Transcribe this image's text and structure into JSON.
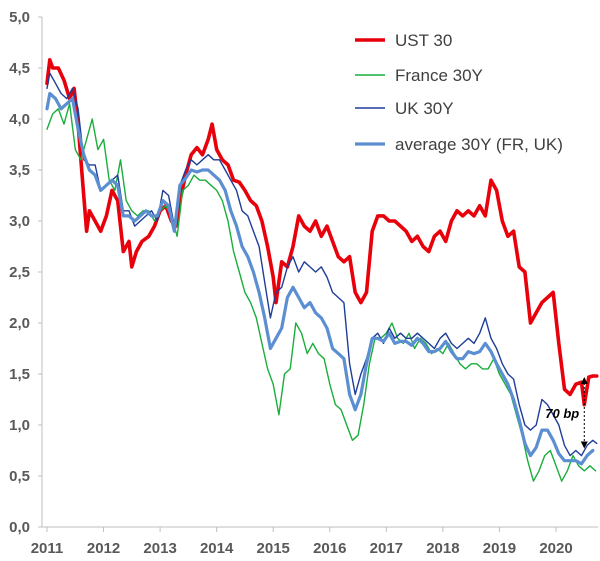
{
  "chart_data": {
    "type": "line",
    "title": "",
    "xlabel": "",
    "ylabel": "",
    "x_range": [
      2011.0,
      2020.75
    ],
    "ylim": [
      0.0,
      5.0
    ],
    "x_ticks": [
      "2011",
      "2012",
      "2013",
      "2014",
      "2015",
      "2016",
      "2017",
      "2018",
      "2019",
      "2020"
    ],
    "y_ticks": [
      "0,0",
      "0,5",
      "1,0",
      "1,5",
      "2,0",
      "2,5",
      "3,0",
      "3,5",
      "4,0",
      "4,5",
      "5,0"
    ],
    "grid": false,
    "legend_position": "top-right",
    "series": [
      {
        "name": "UST 30",
        "color": "#e8000b",
        "x": [
          2011.0,
          2011.05,
          2011.1,
          2011.2,
          2011.3,
          2011.4,
          2011.48,
          2011.55,
          2011.62,
          2011.7,
          2011.75,
          2011.85,
          2011.95,
          2012.05,
          2012.15,
          2012.25,
          2012.35,
          2012.45,
          2012.5,
          2012.58,
          2012.68,
          2012.8,
          2012.9,
          2013.0,
          2013.1,
          2013.2,
          2013.28,
          2013.35,
          2013.45,
          2013.55,
          2013.65,
          2013.75,
          2013.85,
          2013.92,
          2014.0,
          2014.1,
          2014.2,
          2014.3,
          2014.4,
          2014.5,
          2014.6,
          2014.7,
          2014.8,
          2014.9,
          2015.0,
          2015.05,
          2015.15,
          2015.25,
          2015.35,
          2015.45,
          2015.55,
          2015.65,
          2015.75,
          2015.85,
          2015.95,
          2016.05,
          2016.15,
          2016.25,
          2016.35,
          2016.45,
          2016.55,
          2016.65,
          2016.75,
          2016.85,
          2016.95,
          2017.05,
          2017.15,
          2017.25,
          2017.35,
          2017.45,
          2017.55,
          2017.65,
          2017.75,
          2017.85,
          2017.95,
          2018.05,
          2018.15,
          2018.25,
          2018.35,
          2018.45,
          2018.55,
          2018.65,
          2018.75,
          2018.85,
          2018.95,
          2019.05,
          2019.15,
          2019.25,
          2019.35,
          2019.45,
          2019.55,
          2019.65,
          2019.75,
          2019.85,
          2019.95,
          2020.05,
          2020.15,
          2020.25,
          2020.35,
          2020.45,
          2020.5,
          2020.58,
          2020.65,
          2020.72
        ],
        "values": [
          4.35,
          4.58,
          4.5,
          4.5,
          4.38,
          4.2,
          4.3,
          3.95,
          3.45,
          2.9,
          3.1,
          3.0,
          2.9,
          3.05,
          3.3,
          3.2,
          2.7,
          2.8,
          2.55,
          2.7,
          2.8,
          2.85,
          2.95,
          3.1,
          3.15,
          3.0,
          2.95,
          3.2,
          3.45,
          3.65,
          3.72,
          3.65,
          3.8,
          3.95,
          3.7,
          3.6,
          3.55,
          3.4,
          3.38,
          3.3,
          3.2,
          3.15,
          3.0,
          2.75,
          2.45,
          2.2,
          2.6,
          2.55,
          2.75,
          3.05,
          2.95,
          2.9,
          3.0,
          2.85,
          2.95,
          2.8,
          2.65,
          2.6,
          2.65,
          2.3,
          2.2,
          2.3,
          2.9,
          3.05,
          3.05,
          3.0,
          3.0,
          2.95,
          2.9,
          2.8,
          2.85,
          2.75,
          2.7,
          2.85,
          2.9,
          2.8,
          3.0,
          3.1,
          3.05,
          3.1,
          3.05,
          3.15,
          3.05,
          3.4,
          3.3,
          3.0,
          2.85,
          2.9,
          2.55,
          2.5,
          2.0,
          2.1,
          2.2,
          2.25,
          2.3,
          1.8,
          1.35,
          1.3,
          1.4,
          1.42,
          1.2,
          1.47,
          1.48,
          1.48
        ]
      },
      {
        "name": "France 30Y",
        "color": "#1aae3c",
        "x": [
          2011.0,
          2011.1,
          2011.2,
          2011.3,
          2011.4,
          2011.5,
          2011.6,
          2011.7,
          2011.8,
          2011.9,
          2012.0,
          2012.1,
          2012.2,
          2012.3,
          2012.4,
          2012.5,
          2012.6,
          2012.7,
          2012.8,
          2012.9,
          2013.0,
          2013.1,
          2013.2,
          2013.3,
          2013.4,
          2013.5,
          2013.6,
          2013.7,
          2013.8,
          2013.9,
          2014.0,
          2014.1,
          2014.2,
          2014.3,
          2014.4,
          2014.5,
          2014.6,
          2014.7,
          2014.8,
          2014.9,
          2015.0,
          2015.1,
          2015.2,
          2015.3,
          2015.4,
          2015.5,
          2015.6,
          2015.7,
          2015.8,
          2015.9,
          2016.0,
          2016.1,
          2016.2,
          2016.3,
          2016.4,
          2016.5,
          2016.6,
          2016.7,
          2016.8,
          2016.9,
          2017.0,
          2017.1,
          2017.2,
          2017.3,
          2017.4,
          2017.5,
          2017.6,
          2017.7,
          2017.8,
          2017.9,
          2018.0,
          2018.1,
          2018.2,
          2018.3,
          2018.4,
          2018.5,
          2018.6,
          2018.7,
          2018.8,
          2018.9,
          2019.0,
          2019.1,
          2019.2,
          2019.3,
          2019.4,
          2019.5,
          2019.6,
          2019.7,
          2019.8,
          2019.9,
          2020.0,
          2020.1,
          2020.2,
          2020.3,
          2020.4,
          2020.5,
          2020.6,
          2020.7
        ],
        "values": [
          3.9,
          4.05,
          4.1,
          3.95,
          4.15,
          3.7,
          3.6,
          3.8,
          4.0,
          3.7,
          3.8,
          3.4,
          3.3,
          3.6,
          3.2,
          3.1,
          3.05,
          3.1,
          3.1,
          3.0,
          3.1,
          3.15,
          3.05,
          2.85,
          3.3,
          3.35,
          3.45,
          3.4,
          3.4,
          3.35,
          3.3,
          3.2,
          3.0,
          2.7,
          2.5,
          2.3,
          2.2,
          2.05,
          1.8,
          1.55,
          1.4,
          1.1,
          1.5,
          1.55,
          2.0,
          1.9,
          1.7,
          1.8,
          1.7,
          1.65,
          1.4,
          1.2,
          1.15,
          1.0,
          0.85,
          0.9,
          1.2,
          1.6,
          1.85,
          1.85,
          1.9,
          2.0,
          1.85,
          1.8,
          1.9,
          1.75,
          1.85,
          1.8,
          1.7,
          1.75,
          1.7,
          1.8,
          1.7,
          1.6,
          1.55,
          1.6,
          1.6,
          1.55,
          1.55,
          1.65,
          1.5,
          1.4,
          1.3,
          1.1,
          0.9,
          0.65,
          0.45,
          0.55,
          0.7,
          0.75,
          0.6,
          0.45,
          0.55,
          0.7,
          0.6,
          0.55,
          0.6,
          0.55
        ]
      },
      {
        "name": "UK 30Y",
        "color": "#1f3d99",
        "x": [
          2011.0,
          2011.05,
          2011.15,
          2011.25,
          2011.35,
          2011.45,
          2011.55,
          2011.65,
          2011.75,
          2011.85,
          2011.95,
          2012.05,
          2012.15,
          2012.25,
          2012.35,
          2012.45,
          2012.55,
          2012.65,
          2012.75,
          2012.85,
          2012.95,
          2013.05,
          2013.15,
          2013.25,
          2013.35,
          2013.45,
          2013.55,
          2013.65,
          2013.75,
          2013.85,
          2013.95,
          2014.05,
          2014.15,
          2014.25,
          2014.35,
          2014.45,
          2014.55,
          2014.65,
          2014.75,
          2014.85,
          2014.95,
          2015.05,
          2015.15,
          2015.25,
          2015.35,
          2015.45,
          2015.55,
          2015.65,
          2015.75,
          2015.85,
          2015.95,
          2016.05,
          2016.15,
          2016.25,
          2016.35,
          2016.45,
          2016.55,
          2016.65,
          2016.75,
          2016.85,
          2016.95,
          2017.05,
          2017.15,
          2017.25,
          2017.35,
          2017.45,
          2017.55,
          2017.65,
          2017.75,
          2017.85,
          2017.95,
          2018.05,
          2018.15,
          2018.25,
          2018.35,
          2018.45,
          2018.55,
          2018.65,
          2018.75,
          2018.85,
          2018.95,
          2019.05,
          2019.15,
          2019.25,
          2019.35,
          2019.45,
          2019.55,
          2019.65,
          2019.75,
          2019.85,
          2019.95,
          2020.05,
          2020.15,
          2020.25,
          2020.35,
          2020.45,
          2020.55,
          2020.65,
          2020.72
        ],
        "values": [
          4.3,
          4.45,
          4.35,
          4.25,
          4.2,
          4.3,
          4.1,
          3.6,
          3.55,
          3.55,
          3.3,
          3.35,
          3.4,
          3.45,
          3.1,
          3.1,
          2.95,
          3.0,
          3.05,
          3.1,
          3.0,
          3.3,
          3.25,
          2.95,
          3.35,
          3.5,
          3.6,
          3.55,
          3.6,
          3.65,
          3.6,
          3.6,
          3.5,
          3.4,
          3.3,
          3.1,
          3.05,
          2.9,
          2.75,
          2.4,
          2.05,
          2.3,
          2.35,
          2.55,
          2.65,
          2.5,
          2.6,
          2.55,
          2.5,
          2.55,
          2.45,
          2.3,
          2.25,
          2.2,
          1.6,
          1.3,
          1.5,
          1.65,
          1.85,
          1.9,
          1.8,
          1.95,
          1.85,
          1.9,
          1.85,
          1.85,
          1.9,
          1.85,
          1.8,
          1.75,
          1.85,
          1.9,
          1.8,
          1.75,
          1.8,
          1.85,
          1.8,
          1.9,
          2.05,
          1.85,
          1.75,
          1.6,
          1.5,
          1.45,
          1.2,
          1.0,
          0.95,
          1.0,
          1.25,
          1.2,
          1.1,
          1.0,
          0.8,
          0.7,
          0.75,
          0.7,
          0.8,
          0.85,
          0.82
        ]
      },
      {
        "name": "average 30Y (FR, UK)",
        "color": "#5b8fd1",
        "x": [
          2011.0,
          2011.05,
          2011.15,
          2011.25,
          2011.35,
          2011.45,
          2011.55,
          2011.65,
          2011.75,
          2011.85,
          2011.95,
          2012.05,
          2012.15,
          2012.25,
          2012.35,
          2012.45,
          2012.55,
          2012.65,
          2012.75,
          2012.85,
          2012.95,
          2013.05,
          2013.15,
          2013.25,
          2013.35,
          2013.45,
          2013.55,
          2013.65,
          2013.75,
          2013.85,
          2013.95,
          2014.05,
          2014.15,
          2014.25,
          2014.35,
          2014.45,
          2014.55,
          2014.65,
          2014.75,
          2014.85,
          2014.95,
          2015.05,
          2015.15,
          2015.25,
          2015.35,
          2015.45,
          2015.55,
          2015.65,
          2015.75,
          2015.85,
          2015.95,
          2016.05,
          2016.15,
          2016.25,
          2016.35,
          2016.45,
          2016.55,
          2016.65,
          2016.75,
          2016.85,
          2016.95,
          2017.05,
          2017.15,
          2017.25,
          2017.35,
          2017.45,
          2017.55,
          2017.65,
          2017.75,
          2017.85,
          2017.95,
          2018.05,
          2018.15,
          2018.25,
          2018.35,
          2018.45,
          2018.55,
          2018.65,
          2018.75,
          2018.85,
          2018.95,
          2019.05,
          2019.15,
          2019.25,
          2019.35,
          2019.45,
          2019.55,
          2019.65,
          2019.75,
          2019.85,
          2019.95,
          2020.05,
          2020.15,
          2020.25,
          2020.35,
          2020.45,
          2020.55,
          2020.65
        ],
        "values": [
          4.1,
          4.25,
          4.2,
          4.1,
          4.15,
          4.2,
          3.9,
          3.65,
          3.5,
          3.45,
          3.3,
          3.35,
          3.4,
          3.35,
          3.05,
          3.05,
          3.0,
          3.05,
          3.1,
          3.05,
          3.05,
          3.2,
          3.15,
          2.9,
          3.35,
          3.42,
          3.5,
          3.48,
          3.5,
          3.5,
          3.45,
          3.4,
          3.3,
          3.1,
          2.95,
          2.75,
          2.65,
          2.5,
          2.3,
          2.05,
          1.75,
          1.85,
          1.95,
          2.25,
          2.35,
          2.25,
          2.15,
          2.2,
          2.1,
          2.05,
          1.95,
          1.75,
          1.7,
          1.65,
          1.3,
          1.15,
          1.3,
          1.6,
          1.85,
          1.85,
          1.82,
          1.9,
          1.8,
          1.82,
          1.82,
          1.78,
          1.85,
          1.8,
          1.72,
          1.72,
          1.75,
          1.82,
          1.72,
          1.65,
          1.65,
          1.72,
          1.7,
          1.72,
          1.8,
          1.72,
          1.6,
          1.5,
          1.4,
          1.25,
          1.05,
          0.82,
          0.7,
          0.78,
          0.95,
          0.95,
          0.85,
          0.72,
          0.65,
          0.65,
          0.65,
          0.62,
          0.7,
          0.75
        ]
      }
    ],
    "annotations": [
      {
        "text": "70 bp",
        "x": 2020.5,
        "y_from": 1.47,
        "y_to": 0.77
      }
    ]
  }
}
